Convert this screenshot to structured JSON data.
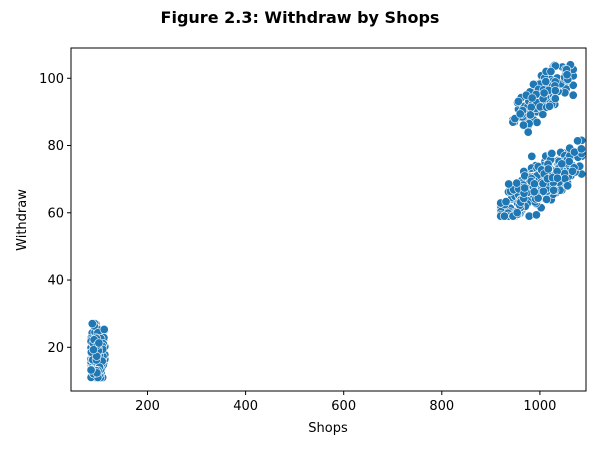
{
  "chart_data": {
    "type": "scatter",
    "title": "Figure 2.3: Withdraw by Shops",
    "xlabel": "Shops",
    "ylabel": "Withdraw",
    "xlim": [
      44,
      1094
    ],
    "ylim": [
      7,
      109
    ],
    "xticks": [
      200,
      400,
      600,
      800,
      1000
    ],
    "yticks": [
      20,
      40,
      60,
      80,
      100
    ],
    "grid": false,
    "legend": "none",
    "marker_color": "#1f77b4",
    "marker_edge_color": "#ffffff",
    "clusters": [
      {
        "x_center": 98,
        "y_center": 18,
        "x_spread": 9,
        "y_spread": 4.5,
        "count": 160,
        "x_range": [
          85,
          113
        ],
        "y_range": [
          11,
          27
        ]
      },
      {
        "x_center": 1005,
        "y_center": 95,
        "x_spread": 28,
        "y_spread": 4,
        "count": 160,
        "x_range": [
          945,
          1068
        ],
        "y_range": [
          84,
          104
        ]
      },
      {
        "x_center": 1000,
        "y_center": 68.5,
        "x_spread": 38,
        "y_spread": 4.5,
        "count": 480,
        "x_range": [
          920,
          1085
        ],
        "y_range": [
          59,
          85
        ]
      }
    ]
  }
}
